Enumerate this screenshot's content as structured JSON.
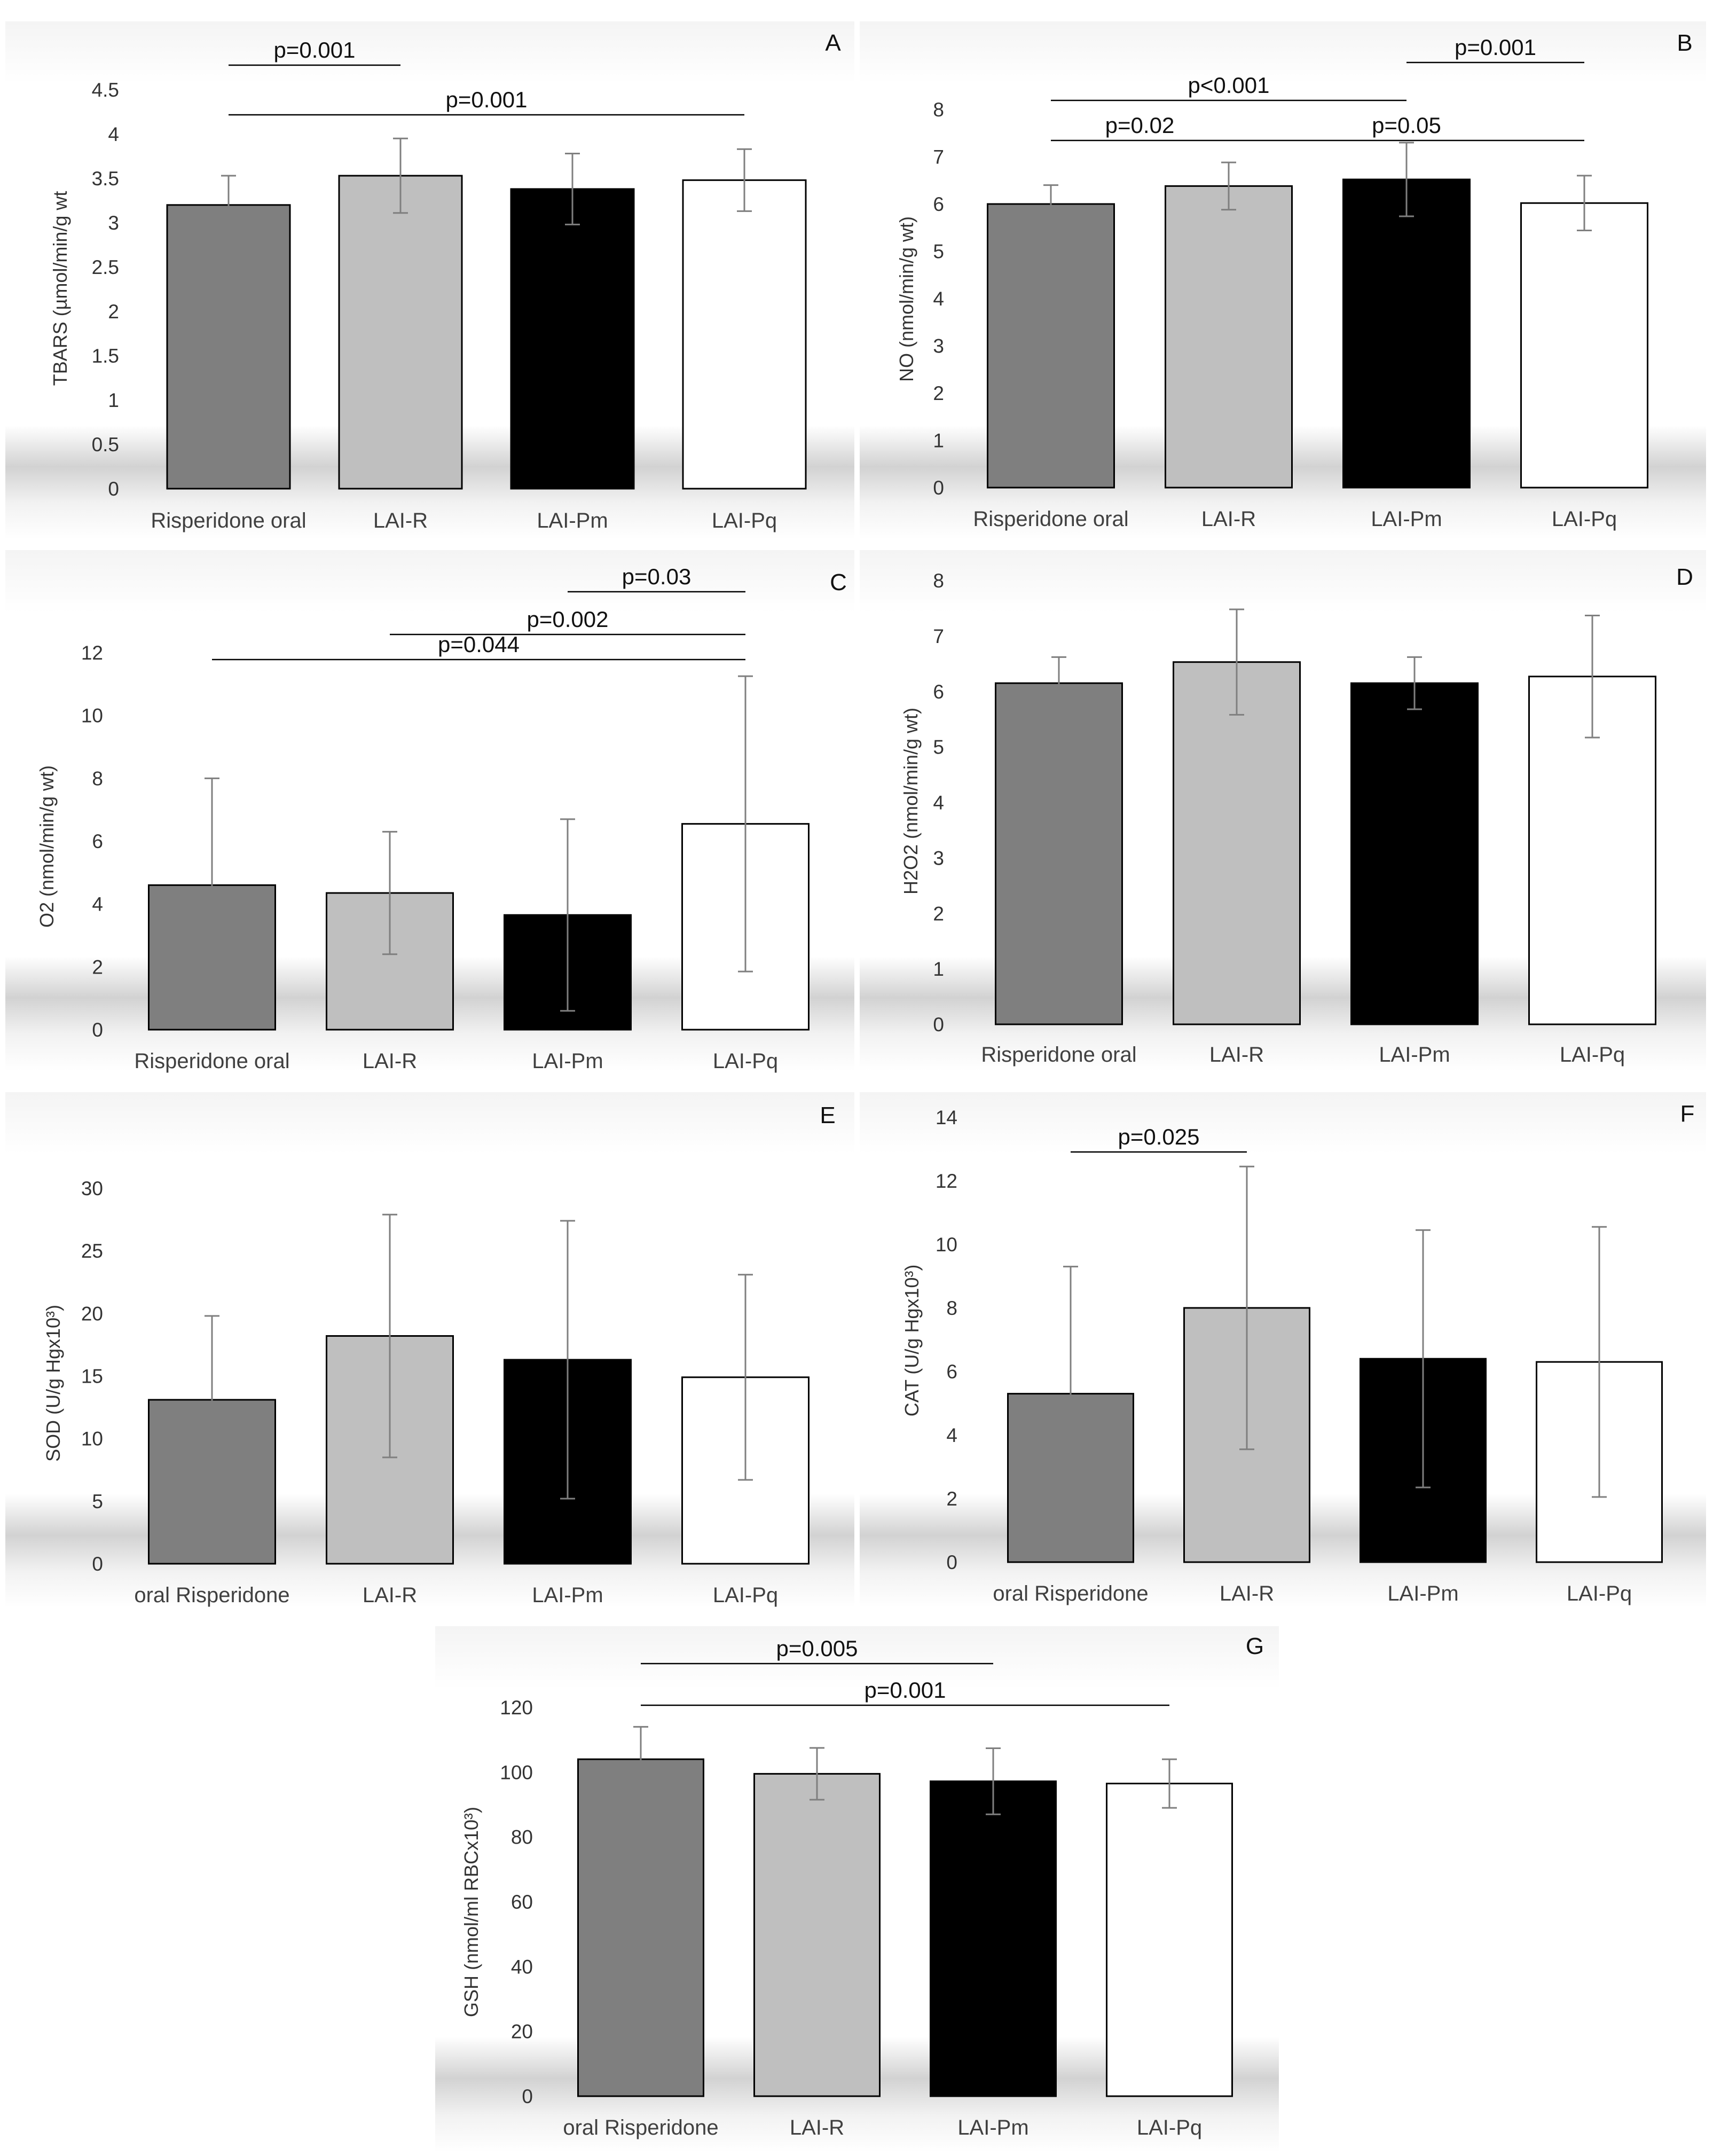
{
  "colors": {
    "bar_fills": [
      "#7f7f7f",
      "#bfbfbf",
      "#000000",
      "#ffffff"
    ],
    "bar_stroke": "#000000",
    "error_bar": "#7f7f7f",
    "sig_line": "#000000",
    "text": "#333333"
  },
  "chart_data": [
    {
      "id": "A",
      "type": "bar",
      "panel_label": "A",
      "ylabel": "TBARS (µmol/min/g wt",
      "categories": [
        "Risperidone oral",
        "LAI-R",
        "LAI-Pm",
        "LAI-Pq"
      ],
      "values": [
        3.2,
        3.53,
        3.38,
        3.48
      ],
      "errors": [
        0.33,
        0.42,
        0.4,
        0.35
      ],
      "ylim": [
        0,
        4.5
      ],
      "yticks": [
        0,
        0.5,
        1,
        1.5,
        2,
        2.5,
        3,
        3.5,
        4,
        4.5
      ],
      "ytick_labels": [
        "0",
        "0.5",
        "1",
        "1.5",
        "2",
        "2.5",
        "3",
        "3.5",
        "4",
        "4.5"
      ],
      "significance": [
        {
          "label": "p=0.001",
          "from": 0,
          "to": 3,
          "level": 1
        },
        {
          "label": "p=0.001",
          "from": 0,
          "to": 1,
          "level": 0
        }
      ]
    },
    {
      "id": "B",
      "type": "bar",
      "panel_label": "B",
      "ylabel": "NO (nmol/min/g wt)",
      "categories": [
        "Risperidone oral",
        "LAI-R",
        "LAI-Pm",
        "LAI-Pq"
      ],
      "values": [
        6.0,
        6.38,
        6.52,
        6.02
      ],
      "errors": [
        0.4,
        0.5,
        0.78,
        0.58
      ],
      "ylim": [
        0,
        8
      ],
      "yticks": [
        0,
        1,
        2,
        3,
        4,
        5,
        6,
        7,
        8
      ],
      "ytick_labels": [
        "0",
        "1",
        "2",
        "3",
        "4",
        "5",
        "6",
        "7",
        "8"
      ],
      "significance": [
        {
          "label": "p=0.05",
          "from": 1,
          "to": 3,
          "level": 3
        },
        {
          "label": "p<0.001",
          "from": 0,
          "to": 2,
          "level": 2
        },
        {
          "label": "p=0.02",
          "from": 0,
          "to": 1,
          "level": 0
        },
        {
          "label": "p=0.001",
          "from": 2,
          "to": 3,
          "level": 0
        }
      ]
    },
    {
      "id": "C",
      "type": "bar",
      "panel_label": "C",
      "ylabel": "O2 (nmol/min/g wt)",
      "categories": [
        "Risperidone oral",
        "LAI-R",
        "LAI-Pm",
        "LAI-Pq"
      ],
      "values": [
        4.6,
        4.35,
        3.65,
        6.55
      ],
      "errors": [
        3.4,
        1.95,
        3.05,
        4.7
      ],
      "ylim": [
        0,
        12
      ],
      "yticks": [
        0,
        2,
        4,
        6,
        8,
        10,
        12
      ],
      "ytick_labels": [
        "0",
        "2",
        "4",
        "6",
        "8",
        "10",
        "12"
      ],
      "significance": [
        {
          "label": "p=0.044",
          "from": 0,
          "to": 3,
          "level": 2
        },
        {
          "label": "p=0.002",
          "from": 1,
          "to": 3,
          "level": 1
        },
        {
          "label": "p=0.03",
          "from": 2,
          "to": 3,
          "level": 0
        }
      ]
    },
    {
      "id": "D",
      "type": "bar",
      "panel_label": "D",
      "ylabel": "H2O2 (nmol/min/g wt)",
      "categories": [
        "Risperidone oral",
        "LAI-R",
        "LAI-Pm",
        "LAI-Pq"
      ],
      "values": [
        6.15,
        6.53,
        6.15,
        6.27
      ],
      "errors": [
        0.47,
        0.95,
        0.47,
        1.1
      ],
      "ylim": [
        0,
        8
      ],
      "yticks": [
        0,
        1,
        2,
        3,
        4,
        5,
        6,
        7,
        8
      ],
      "ytick_labels": [
        "0",
        "1",
        "2",
        "3",
        "4",
        "5",
        "6",
        "7",
        "8"
      ],
      "significance": []
    },
    {
      "id": "E",
      "type": "bar",
      "panel_label": "E",
      "ylabel": "SOD  (U/g Hgx10³)",
      "categories": [
        "oral Risperidone",
        "LAI-R",
        "LAI-Pm",
        "LAI-Pq"
      ],
      "values": [
        13.1,
        18.2,
        16.3,
        14.9
      ],
      "errors": [
        6.7,
        9.7,
        11.1,
        8.2
      ],
      "ylim": [
        0,
        30
      ],
      "yticks": [
        0,
        5,
        10,
        15,
        20,
        25,
        30
      ],
      "ytick_labels": [
        "0",
        "5",
        "10",
        "15",
        "20",
        "25",
        "30"
      ],
      "significance": []
    },
    {
      "id": "F",
      "type": "bar",
      "panel_label": "F",
      "ylabel": "CAT  (U/g Hgx10³)",
      "categories": [
        "oral Risperidone",
        "LAI-R",
        "LAI-Pm",
        "LAI-Pq"
      ],
      "values": [
        5.3,
        8.0,
        6.4,
        6.3
      ],
      "errors": [
        4.0,
        4.45,
        4.05,
        4.25
      ],
      "ylim": [
        0,
        14
      ],
      "yticks": [
        0,
        2,
        4,
        6,
        8,
        10,
        12,
        14
      ],
      "ytick_labels": [
        "0",
        "2",
        "4",
        "6",
        "8",
        "10",
        "12",
        "14"
      ],
      "significance": [
        {
          "label": "p=0.025",
          "from": 0,
          "to": 1,
          "level": 0
        }
      ]
    },
    {
      "id": "G",
      "type": "bar",
      "panel_label": "G",
      "ylabel": "GSH (nmol/ml RBCx10³)",
      "categories": [
        "oral Risperidone",
        "LAI-R",
        "LAI-Pm",
        "LAI-Pq"
      ],
      "values": [
        104.0,
        99.5,
        97.2,
        96.5
      ],
      "errors": [
        10.0,
        8.0,
        10.2,
        7.5
      ],
      "ylim": [
        0,
        120
      ],
      "yticks": [
        0,
        20,
        40,
        60,
        80,
        100,
        120
      ],
      "ytick_labels": [
        "0",
        "20",
        "40",
        "60",
        "80",
        "100",
        "120"
      ],
      "significance": [
        {
          "label": "p=0.001",
          "from": 0,
          "to": 3,
          "level": 1
        },
        {
          "label": "p=0.005",
          "from": 0,
          "to": 2,
          "level": 0
        }
      ]
    }
  ]
}
